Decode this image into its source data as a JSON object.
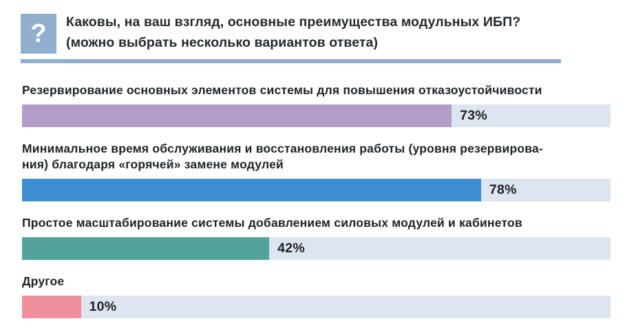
{
  "header": {
    "icon_glyph": "?",
    "question_line1": "Каковы, на ваш взгляд, основные преимущества модульных ИБП?",
    "question_line2": "(можно выбрать несколько вариантов ответа)"
  },
  "colors": {
    "accent_blue": "#90aecd",
    "text": "#1f2124"
  },
  "chart_data": {
    "type": "bar",
    "orientation": "horizontal",
    "title": "Каковы, на ваш взгляд, основные преимущества модульных ИБП? (можно выбрать несколько вариантов ответа)",
    "categories": [
      "Резервирование основных элементов системы для повышения отказоустойчивости",
      "Минимальное время обслуживания и восстановления работы (уровня резервирова-\nния) благодаря «горячей» замене модулей",
      "Простое масштабирование системы добавлением силовых модулей и кабинетов",
      "Другое"
    ],
    "values": [
      73,
      78,
      42,
      10
    ],
    "value_labels": [
      "73%",
      "78%",
      "42%",
      "10%"
    ],
    "bar_colors": [
      "#b39cc8",
      "#3e8ed2",
      "#53a29a",
      "#f1909d"
    ],
    "track_color": "#dde5f1",
    "xlim": [
      0,
      100
    ],
    "unit": "%",
    "grid": false,
    "legend": false
  }
}
